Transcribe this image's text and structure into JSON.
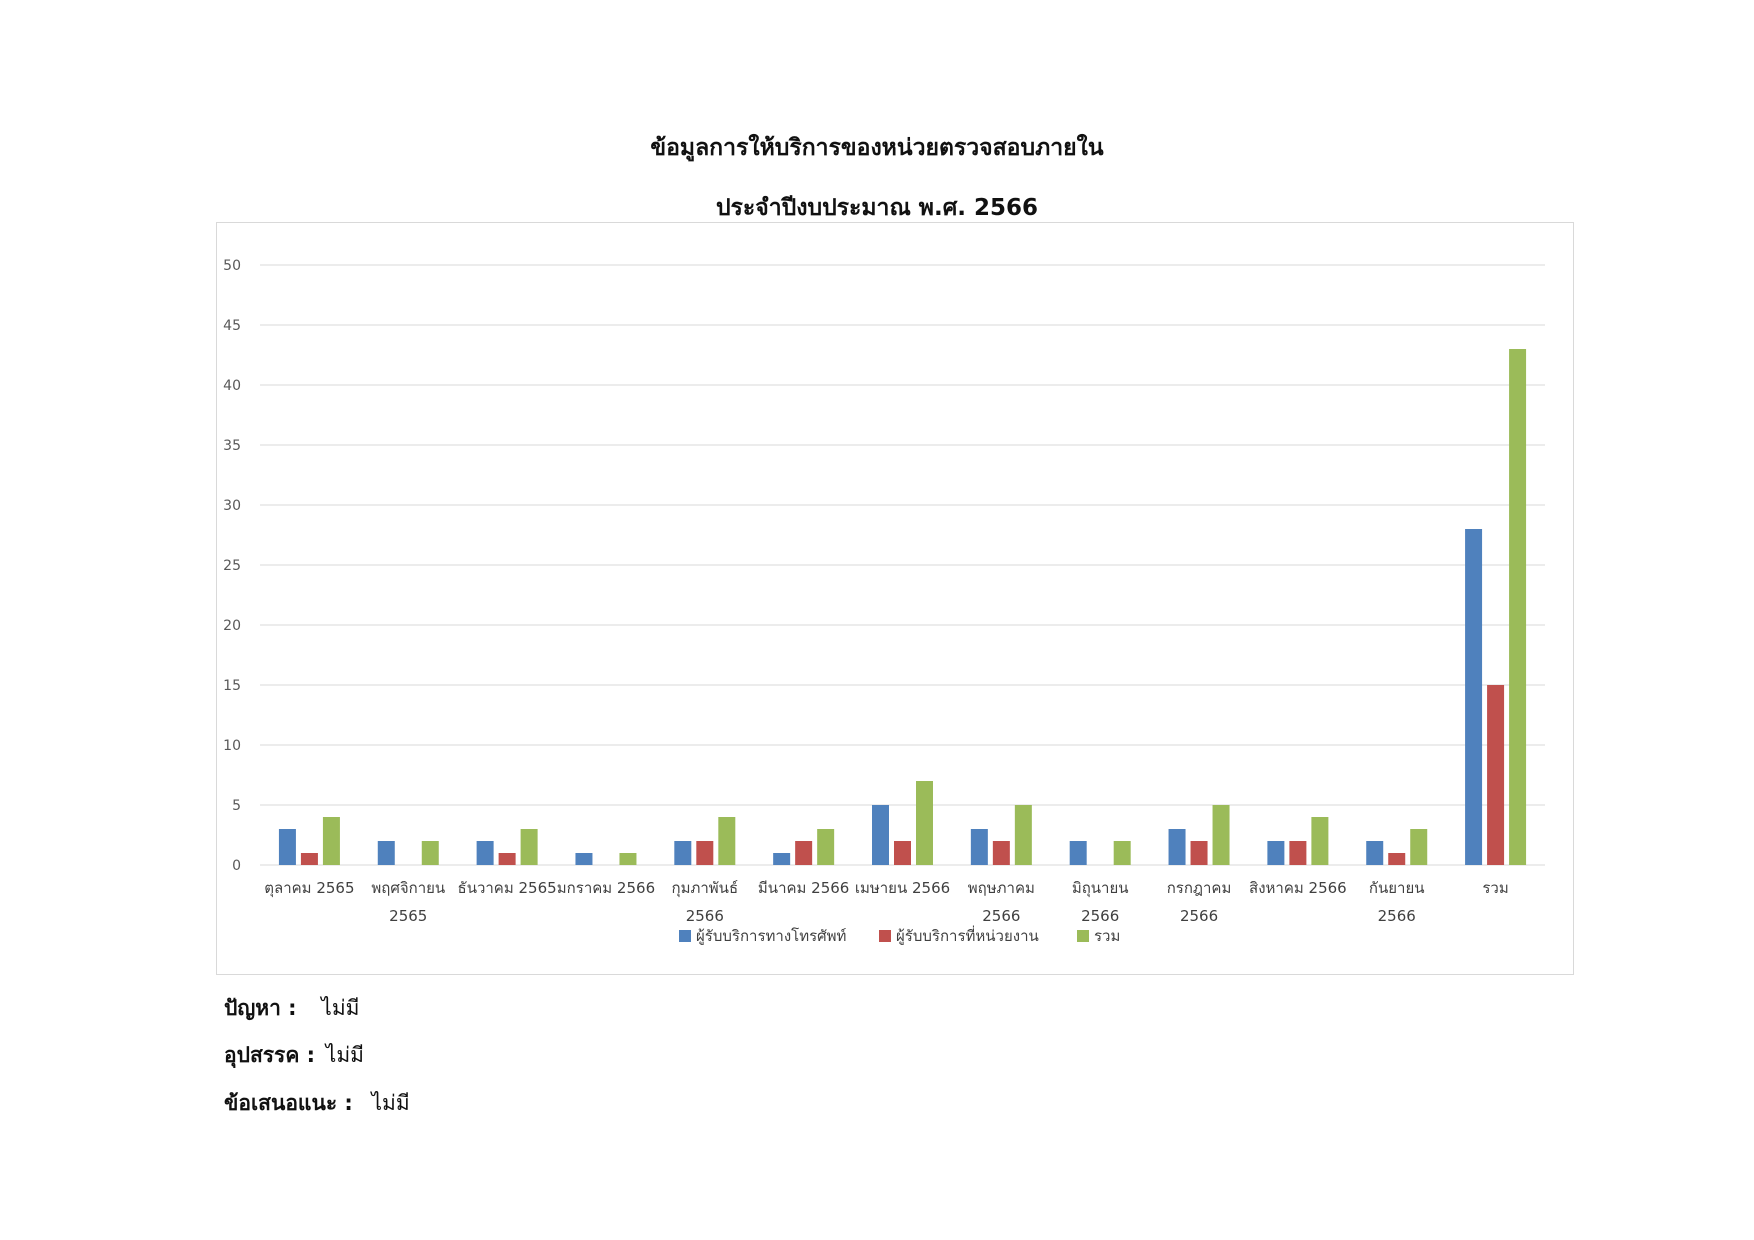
{
  "title_line1": "ข้อมูลการให้บริการของหน่วยตรวจสอบภายใน",
  "title_line2": "ประจำปีงบประมาณ พ.ศ. 2566",
  "chart_data": {
    "type": "bar",
    "title": "",
    "xlabel": "",
    "ylabel": "",
    "ylim": [
      0,
      50
    ],
    "yticks": [
      0,
      5,
      10,
      15,
      20,
      25,
      30,
      35,
      40,
      45,
      50
    ],
    "grid": true,
    "legend_position": "bottom",
    "categories": [
      [
        "ตุลาคม 2565"
      ],
      [
        "พฤศจิกายน",
        "2565"
      ],
      [
        "ธันวาคม 2565"
      ],
      [
        "มกราคม 2566"
      ],
      [
        "กุมภาพันธ์",
        "2566"
      ],
      [
        "มีนาคม 2566"
      ],
      [
        "เมษายน 2566"
      ],
      [
        "พฤษภาคม",
        "2566"
      ],
      [
        "มิถุนายน",
        "2566"
      ],
      [
        "กรกฎาคม",
        "2566"
      ],
      [
        "สิงหาคม 2566"
      ],
      [
        "กันยายน",
        "2566"
      ],
      [
        "รวม"
      ]
    ],
    "series": [
      {
        "name": "ผู้รับบริการทางโทรศัพท์",
        "color": "#4F81BD",
        "values": [
          3,
          2,
          2,
          1,
          2,
          1,
          5,
          3,
          2,
          3,
          2,
          2,
          28
        ]
      },
      {
        "name": "ผู้รับบริการที่หน่วยงาน",
        "color": "#C0504D",
        "values": [
          1,
          0,
          1,
          0,
          2,
          2,
          2,
          2,
          0,
          2,
          2,
          1,
          15
        ]
      },
      {
        "name": "รวม",
        "color": "#9BBB59",
        "values": [
          4,
          2,
          3,
          1,
          4,
          3,
          7,
          5,
          2,
          5,
          4,
          3,
          43
        ]
      }
    ]
  },
  "footer": {
    "problem_label": "ปัญหา :",
    "problem_value": "ไม่มี",
    "obstacle_label": "อุปสรรค :",
    "obstacle_value": "ไม่มี",
    "suggestion_label": "ข้อเสนอแนะ :",
    "suggestion_value": "ไม่มี"
  }
}
